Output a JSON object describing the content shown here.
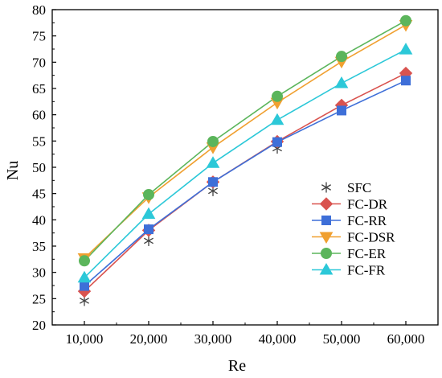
{
  "chart_data": {
    "type": "line",
    "xlabel": "Re",
    "ylabel": "Nu",
    "x": [
      10000,
      20000,
      30000,
      40000,
      50000,
      60000
    ],
    "xtick_labels": [
      "10,000",
      "20,000",
      "30,000",
      "40,000",
      "50,000",
      "60,000"
    ],
    "ylim": [
      20,
      80
    ],
    "yticks": [
      20,
      25,
      30,
      35,
      40,
      45,
      50,
      55,
      60,
      65,
      70,
      75,
      80
    ],
    "grid": false,
    "legend_position": "lower-right",
    "series": [
      {
        "name": "SFC",
        "marker": "asterisk",
        "color": "#404040",
        "line": false,
        "values": [
          24.6,
          36.0,
          45.5,
          53.6,
          61.0,
          67.3
        ]
      },
      {
        "name": "FC-DR",
        "marker": "diamond",
        "color": "#d9534f",
        "line": true,
        "values": [
          26.4,
          38.0,
          47.2,
          54.9,
          61.8,
          67.9
        ]
      },
      {
        "name": "FC-RR",
        "marker": "square",
        "color": "#3e6fd8",
        "line": true,
        "values": [
          27.4,
          38.2,
          47.2,
          54.8,
          60.8,
          66.5
        ]
      },
      {
        "name": "FC-DSR",
        "marker": "triangle-down",
        "color": "#f0a030",
        "line": true,
        "values": [
          32.7,
          44.3,
          53.8,
          62.3,
          70.1,
          77.1
        ]
      },
      {
        "name": "FC-ER",
        "marker": "circle",
        "color": "#5bb55b",
        "line": true,
        "values": [
          32.2,
          44.8,
          54.9,
          63.5,
          71.1,
          77.9
        ]
      },
      {
        "name": "FC-FR",
        "marker": "triangle-up",
        "color": "#2cc8d8",
        "line": true,
        "values": [
          29.0,
          41.1,
          50.8,
          59.0,
          66.0,
          72.4
        ]
      }
    ]
  }
}
